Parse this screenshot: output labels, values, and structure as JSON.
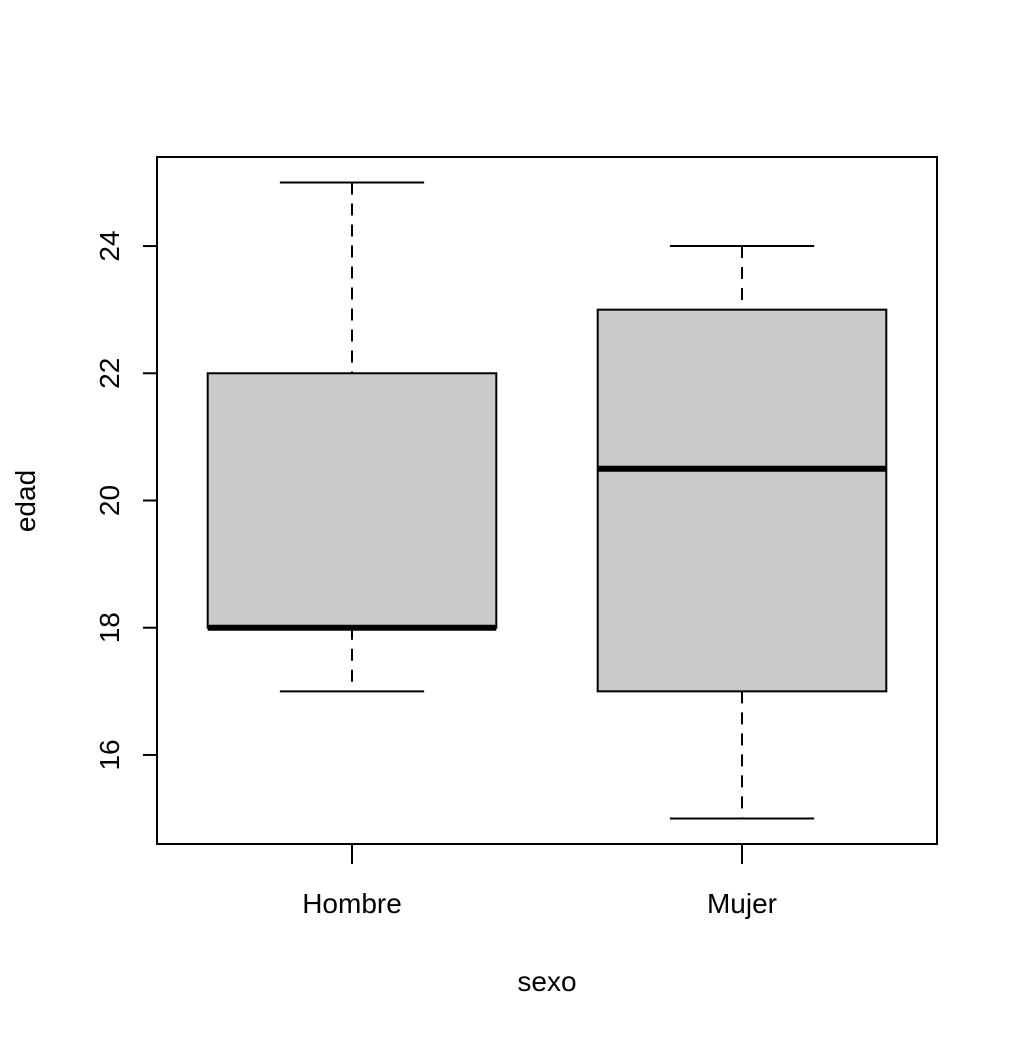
{
  "chart_data": {
    "type": "box",
    "xlabel": "sexo",
    "ylabel": "edad",
    "ylim": [
      14.6,
      25.4
    ],
    "yticks": [
      16,
      18,
      20,
      22,
      24
    ],
    "grid": false,
    "legend": "none",
    "colors": {
      "box_fill": "#cacaca",
      "stroke": "#000000"
    },
    "categories": [
      "Hombre",
      "Mujer"
    ],
    "boxes": [
      {
        "category": "Hombre",
        "min": 17,
        "q1": 18,
        "median": 18,
        "q3": 22,
        "max": 25
      },
      {
        "category": "Mujer",
        "min": 15,
        "q1": 17,
        "median": 20.5,
        "q3": 23,
        "max": 24
      }
    ]
  }
}
